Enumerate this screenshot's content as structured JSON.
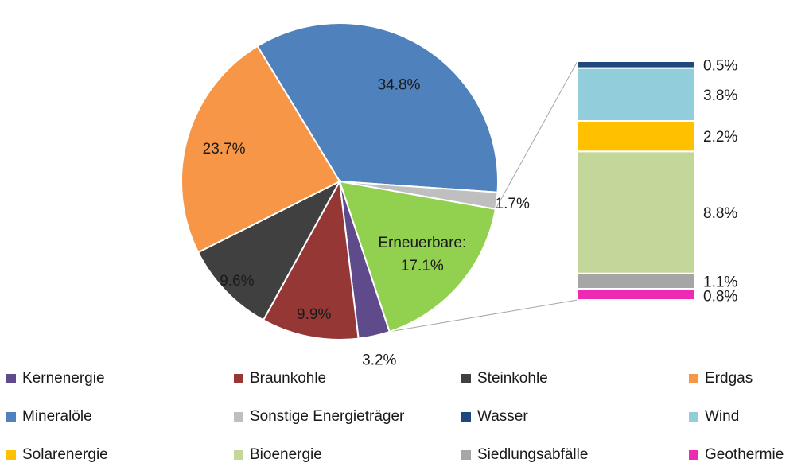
{
  "chart_data": [
    {
      "type": "pie",
      "slices": [
        {
          "name": "Mineralöle",
          "value": 34.8,
          "label": "34.8%",
          "color": "#4F81BD"
        },
        {
          "name": "Sonstige Energieträger",
          "value": 1.7,
          "label": "1.7%",
          "color": "#BFBFBF"
        },
        {
          "name": "Erneuerbare",
          "value": 17.1,
          "label": "17.1%",
          "label_prefix": "Erneuerbare:",
          "color": "#92D050"
        },
        {
          "name": "Kernenergie",
          "value": 3.2,
          "label": "3.2%",
          "color": "#5F4B8B"
        },
        {
          "name": "Braunkohle",
          "value": 9.9,
          "label": "9.9%",
          "color": "#953735"
        },
        {
          "name": "Steinkohle",
          "value": 9.6,
          "label": "9.6%",
          "color": "#404040"
        },
        {
          "name": "Erdgas",
          "value": 23.7,
          "label": "23.7%",
          "color": "#F79646"
        }
      ]
    },
    {
      "type": "bar",
      "stacked": true,
      "breakdown_of": "Erneuerbare",
      "segments": [
        {
          "name": "Wasser",
          "value": 0.5,
          "label": "0.5%",
          "color": "#1F497D"
        },
        {
          "name": "Wind",
          "value": 3.8,
          "label": "3.8%",
          "color": "#92CDDC"
        },
        {
          "name": "Solarenergie",
          "value": 2.2,
          "label": "2.2%",
          "color": "#FFC000"
        },
        {
          "name": "Bioenergie",
          "value": 8.8,
          "label": "8.8%",
          "color": "#C4D79B"
        },
        {
          "name": "Siedlungsabfälle",
          "value": 1.1,
          "label": "1.1%",
          "color": "#A6A6A6"
        },
        {
          "name": "Geothermie",
          "value": 0.8,
          "label": "0.8%",
          "color": "#EE2AB4"
        }
      ]
    }
  ],
  "legend": [
    {
      "name": "Kernenergie",
      "color": "#5F4B8B"
    },
    {
      "name": "Braunkohle",
      "color": "#953735"
    },
    {
      "name": "Steinkohle",
      "color": "#404040"
    },
    {
      "name": "Erdgas",
      "color": "#F79646"
    },
    {
      "name": "Mineralöle",
      "color": "#4F81BD"
    },
    {
      "name": "Sonstige Energieträger",
      "color": "#BFBFBF"
    },
    {
      "name": "Wasser",
      "color": "#1F497D"
    },
    {
      "name": "Wind",
      "color": "#92CDDC"
    },
    {
      "name": "Solarenergie",
      "color": "#FFC000"
    },
    {
      "name": "Bioenergie",
      "color": "#C4D79B"
    },
    {
      "name": "Siedlungsabfälle",
      "color": "#A6A6A6"
    },
    {
      "name": "Geothermie",
      "color": "#EE2AB4"
    }
  ]
}
